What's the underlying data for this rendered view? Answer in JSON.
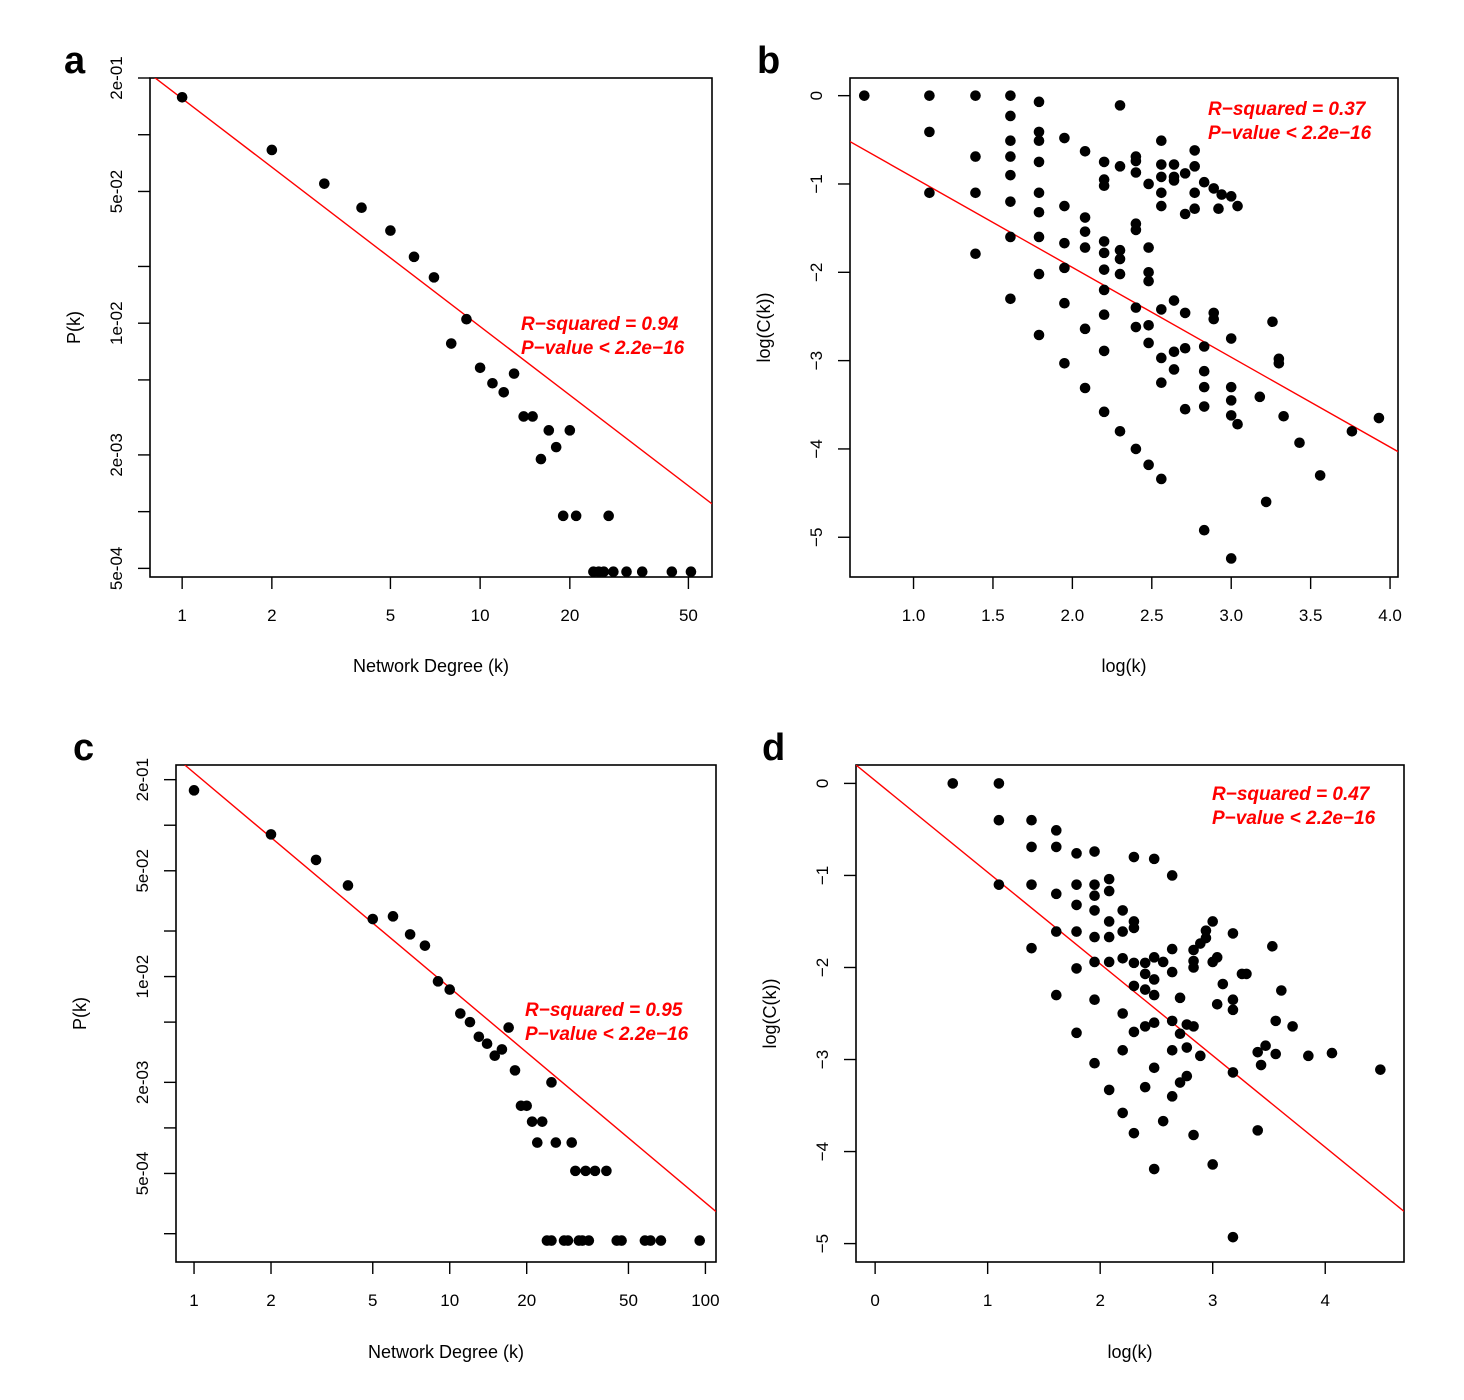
{
  "chart_data": [
    {
      "panel": "a",
      "type": "scatter",
      "xscale": "log",
      "yscale": "log",
      "xlabel": "Network Degree (k)",
      "ylabel": "P(k)",
      "xticks": [
        1,
        2,
        5,
        10,
        20,
        50
      ],
      "xtick_labels": [
        "1",
        "2",
        "5",
        "10",
        "20",
        "50"
      ],
      "yticks": [
        0.2,
        0.05,
        0.01,
        0.002,
        0.0005
      ],
      "ytick_labels": [
        "2e-01",
        "5e-02",
        "1e-02",
        "2e-03",
        "5e-04"
      ],
      "xlim": [
        0.78,
        60
      ],
      "ylim": [
        0.00045,
        0.2
      ],
      "grid": false,
      "fit_line": {
        "x": [
          0.78,
          60
        ],
        "y": [
          0.21,
          0.0011
        ],
        "color": "#ff0000"
      },
      "annotations": [
        "R−squared = 0.94",
        "P−value < 2.2e−16"
      ],
      "points": [
        [
          1,
          0.158
        ],
        [
          2,
          0.083
        ],
        [
          3,
          0.055
        ],
        [
          4,
          0.041
        ],
        [
          5,
          0.031
        ],
        [
          6,
          0.0225
        ],
        [
          7,
          0.0175
        ],
        [
          9,
          0.0105
        ],
        [
          8,
          0.0078
        ],
        [
          10,
          0.0058
        ],
        [
          11,
          0.0048
        ],
        [
          12,
          0.0043
        ],
        [
          13,
          0.0054
        ],
        [
          14,
          0.0032
        ],
        [
          15,
          0.0032
        ],
        [
          17,
          0.0027
        ],
        [
          18,
          0.0022
        ],
        [
          16,
          0.0019
        ],
        [
          20,
          0.0027
        ],
        [
          19,
          0.00095
        ],
        [
          21,
          0.00095
        ],
        [
          27,
          0.00095
        ],
        [
          24,
          0.00048
        ],
        [
          25,
          0.00048
        ],
        [
          26,
          0.00048
        ],
        [
          28,
          0.00048
        ],
        [
          31,
          0.00048
        ],
        [
          35,
          0.00048
        ],
        [
          44,
          0.00048
        ],
        [
          51,
          0.00048
        ]
      ]
    },
    {
      "panel": "b",
      "type": "scatter",
      "xscale": "linear",
      "yscale": "linear",
      "xlabel": "log(k)",
      "ylabel": "log(C(k))",
      "xticks": [
        1.0,
        1.5,
        2.0,
        2.5,
        3.0,
        3.5,
        4.0
      ],
      "xtick_labels": [
        "1.0",
        "1.5",
        "2.0",
        "2.5",
        "3.0",
        "3.5",
        "4.0"
      ],
      "yticks": [
        0,
        -1,
        -2,
        -3,
        -4,
        -5
      ],
      "ytick_labels": [
        "0",
        "−1",
        "−2",
        "−3",
        "−4",
        "−5"
      ],
      "xlim": [
        0.6,
        4.05
      ],
      "ylim": [
        -5.45,
        0.2
      ],
      "grid": false,
      "fit_line": {
        "x": [
          0.6,
          4.05
        ],
        "y": [
          -0.52,
          -4.03
        ],
        "color": "#ff0000"
      },
      "annotations": [
        "R−squared = 0.37",
        "P−value < 2.2e−16"
      ],
      "points": [
        [
          0.69,
          0
        ],
        [
          1.1,
          0
        ],
        [
          1.39,
          0
        ],
        [
          1.61,
          0
        ],
        [
          1.79,
          -0.07
        ],
        [
          2.3,
          -0.11
        ],
        [
          1.1,
          -0.41
        ],
        [
          1.61,
          -0.23
        ],
        [
          1.61,
          -0.51
        ],
        [
          1.79,
          -0.41
        ],
        [
          1.79,
          -0.51
        ],
        [
          1.95,
          -0.48
        ],
        [
          1.39,
          -0.69
        ],
        [
          1.61,
          -0.69
        ],
        [
          1.79,
          -0.75
        ],
        [
          2.08,
          -0.63
        ],
        [
          2.2,
          -0.75
        ],
        [
          2.3,
          -0.8
        ],
        [
          2.4,
          -0.69
        ],
        [
          2.4,
          -0.74
        ],
        [
          2.4,
          -0.87
        ],
        [
          2.48,
          -1.0
        ],
        [
          2.56,
          -0.51
        ],
        [
          2.56,
          -0.78
        ],
        [
          2.56,
          -0.92
        ],
        [
          2.64,
          -0.78
        ],
        [
          2.64,
          -0.92
        ],
        [
          2.64,
          -0.96
        ],
        [
          2.71,
          -0.88
        ],
        [
          2.77,
          -0.62
        ],
        [
          2.77,
          -0.8
        ],
        [
          2.83,
          -0.98
        ],
        [
          2.89,
          -1.05
        ],
        [
          2.94,
          -1.12
        ],
        [
          3.0,
          -1.14
        ],
        [
          3.04,
          -1.25
        ],
        [
          2.2,
          -0.95
        ],
        [
          2.2,
          -1.02
        ],
        [
          2.56,
          -1.1
        ],
        [
          2.56,
          -1.25
        ],
        [
          2.71,
          -1.34
        ],
        [
          2.77,
          -1.28
        ],
        [
          2.92,
          -1.28
        ],
        [
          2.77,
          -1.1
        ],
        [
          1.1,
          -1.1
        ],
        [
          1.39,
          -1.1
        ],
        [
          1.61,
          -0.9
        ],
        [
          1.61,
          -1.2
        ],
        [
          1.79,
          -1.1
        ],
        [
          1.79,
          -1.32
        ],
        [
          1.95,
          -1.25
        ],
        [
          2.08,
          -1.38
        ],
        [
          2.08,
          -1.54
        ],
        [
          2.2,
          -1.65
        ],
        [
          2.3,
          -1.75
        ],
        [
          2.4,
          -1.45
        ],
        [
          2.4,
          -1.52
        ],
        [
          2.48,
          -1.72
        ],
        [
          1.61,
          -1.6
        ],
        [
          1.79,
          -1.6
        ],
        [
          1.95,
          -1.67
        ],
        [
          2.08,
          -1.72
        ],
        [
          2.2,
          -1.78
        ],
        [
          2.3,
          -1.85
        ],
        [
          1.39,
          -1.79
        ],
        [
          1.79,
          -2.02
        ],
        [
          1.95,
          -1.95
        ],
        [
          2.2,
          -1.97
        ],
        [
          2.3,
          -2.02
        ],
        [
          2.48,
          -2.0
        ],
        [
          2.48,
          -2.1
        ],
        [
          2.2,
          -2.2
        ],
        [
          2.4,
          -2.4
        ],
        [
          2.56,
          -2.42
        ],
        [
          2.64,
          -2.32
        ],
        [
          2.2,
          -2.48
        ],
        [
          2.08,
          -2.64
        ],
        [
          2.4,
          -2.62
        ],
        [
          2.48,
          -2.6
        ],
        [
          2.71,
          -2.46
        ],
        [
          1.61,
          -2.3
        ],
        [
          1.95,
          -2.35
        ],
        [
          1.79,
          -2.71
        ],
        [
          2.48,
          -2.8
        ],
        [
          2.64,
          -2.9
        ],
        [
          2.71,
          -2.86
        ],
        [
          2.83,
          -2.84
        ],
        [
          2.56,
          -2.97
        ],
        [
          2.89,
          -2.46
        ],
        [
          2.89,
          -2.53
        ],
        [
          3.0,
          -2.75
        ],
        [
          2.2,
          -2.89
        ],
        [
          1.95,
          -3.03
        ],
        [
          2.64,
          -3.1
        ],
        [
          2.83,
          -3.12
        ],
        [
          2.56,
          -3.25
        ],
        [
          2.83,
          -3.3
        ],
        [
          3.0,
          -3.3
        ],
        [
          2.08,
          -3.31
        ],
        [
          3.0,
          -3.45
        ],
        [
          3.18,
          -3.41
        ],
        [
          2.83,
          -3.52
        ],
        [
          2.71,
          -3.55
        ],
        [
          3.0,
          -3.62
        ],
        [
          3.04,
          -3.72
        ],
        [
          3.33,
          -3.63
        ],
        [
          2.2,
          -3.58
        ],
        [
          2.3,
          -3.8
        ],
        [
          3.43,
          -3.93
        ],
        [
          3.76,
          -3.8
        ],
        [
          3.93,
          -3.65
        ],
        [
          2.4,
          -4.0
        ],
        [
          2.48,
          -4.18
        ],
        [
          2.56,
          -4.34
        ],
        [
          3.56,
          -4.3
        ],
        [
          3.22,
          -4.6
        ],
        [
          3.26,
          -2.56
        ],
        [
          3.3,
          -2.98
        ],
        [
          3.3,
          -3.03
        ],
        [
          2.83,
          -4.92
        ],
        [
          3.0,
          -5.24
        ]
      ]
    },
    {
      "panel": "c",
      "type": "scatter",
      "xscale": "log",
      "yscale": "log",
      "xlabel": "Network Degree (k)",
      "ylabel": "P(k)",
      "xticks": [
        1,
        2,
        5,
        10,
        20,
        50,
        100
      ],
      "xtick_labels": [
        "1",
        "2",
        "5",
        "10",
        "20",
        "50",
        "100"
      ],
      "yticks": [
        0.2,
        0.05,
        0.01,
        0.002,
        0.0005
      ],
      "ytick_labels": [
        "2e-01",
        "5e-02",
        "1e-02",
        "2e-03",
        "5e-04"
      ],
      "xlim": [
        0.85,
        110
      ],
      "ylim": [
        0.00013,
        0.25
      ],
      "grid": false,
      "fit_line": {
        "x": [
          0.92,
          110
        ],
        "y": [
          0.25,
          0.00028
        ],
        "color": "#ff0000"
      },
      "annotations": [
        "R−squared = 0.95",
        "P−value < 2.2e−16"
      ],
      "points": [
        [
          1,
          0.17
        ],
        [
          2,
          0.087
        ],
        [
          3,
          0.059
        ],
        [
          4,
          0.04
        ],
        [
          5,
          0.024
        ],
        [
          6,
          0.025
        ],
        [
          7,
          0.019
        ],
        [
          8,
          0.016
        ],
        [
          9,
          0.0093
        ],
        [
          10,
          0.0082
        ],
        [
          11,
          0.0057
        ],
        [
          12,
          0.005
        ],
        [
          13,
          0.004
        ],
        [
          14,
          0.0036
        ],
        [
          15,
          0.003
        ],
        [
          16,
          0.0033
        ],
        [
          17,
          0.0046
        ],
        [
          18,
          0.0024
        ],
        [
          19,
          0.0014
        ],
        [
          20,
          0.0014
        ],
        [
          21,
          0.0011
        ],
        [
          22,
          0.0008
        ],
        [
          23,
          0.0011
        ],
        [
          25,
          0.002
        ],
        [
          26,
          0.0008
        ],
        [
          30,
          0.0008
        ],
        [
          31,
          0.00052
        ],
        [
          34,
          0.00052
        ],
        [
          37,
          0.00052
        ],
        [
          41,
          0.00052
        ],
        [
          24,
          0.00018
        ],
        [
          25,
          0.00018
        ],
        [
          28,
          0.00018
        ],
        [
          29,
          0.00018
        ],
        [
          32,
          0.00018
        ],
        [
          33,
          0.00018
        ],
        [
          35,
          0.00018
        ],
        [
          45,
          0.00018
        ],
        [
          47,
          0.00018
        ],
        [
          58,
          0.00018
        ],
        [
          61,
          0.00018
        ],
        [
          67,
          0.00018
        ],
        [
          95,
          0.00018
        ]
      ]
    },
    {
      "panel": "d",
      "type": "scatter",
      "xscale": "linear",
      "yscale": "linear",
      "xlabel": "log(k)",
      "ylabel": "log(C(k))",
      "xticks": [
        0,
        1,
        2,
        3,
        4
      ],
      "xtick_labels": [
        "0",
        "1",
        "2",
        "3",
        "4"
      ],
      "yticks": [
        0,
        -1,
        -2,
        -3,
        -4,
        -5
      ],
      "ytick_labels": [
        "0",
        "−1",
        "−2",
        "−3",
        "−4",
        "−5"
      ],
      "xlim": [
        -0.17,
        4.7
      ],
      "ylim": [
        -5.2,
        0.2
      ],
      "grid": false,
      "fit_line": {
        "x": [
          -0.17,
          4.7
        ],
        "y": [
          0.2,
          -4.65
        ],
        "color": "#ff0000"
      },
      "annotations": [
        "R−squared = 0.47",
        "P−value < 2.2e−16"
      ],
      "points": [
        [
          0.69,
          0
        ],
        [
          1.1,
          0
        ],
        [
          1.1,
          -0.4
        ],
        [
          1.39,
          -0.4
        ],
        [
          1.61,
          -0.51
        ],
        [
          1.39,
          -0.69
        ],
        [
          1.61,
          -0.69
        ],
        [
          1.79,
          -0.76
        ],
        [
          1.95,
          -0.74
        ],
        [
          2.3,
          -0.8
        ],
        [
          2.48,
          -0.82
        ],
        [
          2.64,
          -1.0
        ],
        [
          1.1,
          -1.1
        ],
        [
          1.39,
          -1.1
        ],
        [
          1.61,
          -1.2
        ],
        [
          1.79,
          -1.1
        ],
        [
          1.95,
          -1.1
        ],
        [
          2.08,
          -1.04
        ],
        [
          1.95,
          -1.22
        ],
        [
          2.08,
          -1.17
        ],
        [
          1.79,
          -1.32
        ],
        [
          1.95,
          -1.38
        ],
        [
          2.2,
          -1.38
        ],
        [
          2.3,
          -1.5
        ],
        [
          2.08,
          -1.5
        ],
        [
          1.61,
          -1.61
        ],
        [
          1.79,
          -1.61
        ],
        [
          1.95,
          -1.67
        ],
        [
          2.08,
          -1.67
        ],
        [
          2.2,
          -1.61
        ],
        [
          2.3,
          -1.57
        ],
        [
          2.08,
          -1.94
        ],
        [
          1.95,
          -1.94
        ],
        [
          1.79,
          -2.01
        ],
        [
          1.39,
          -1.79
        ],
        [
          1.61,
          -2.3
        ],
        [
          1.79,
          -2.71
        ],
        [
          1.95,
          -2.35
        ],
        [
          2.2,
          -1.9
        ],
        [
          2.3,
          -1.95
        ],
        [
          2.4,
          -1.95
        ],
        [
          2.48,
          -1.89
        ],
        [
          2.56,
          -1.94
        ],
        [
          2.64,
          -1.8
        ],
        [
          2.64,
          -2.05
        ],
        [
          2.4,
          -2.07
        ],
        [
          2.48,
          -2.13
        ],
        [
          2.71,
          -2.33
        ],
        [
          2.83,
          -2.0
        ],
        [
          2.83,
          -1.81
        ],
        [
          2.89,
          -1.74
        ],
        [
          2.94,
          -1.6
        ],
        [
          3.0,
          -1.5
        ],
        [
          3.18,
          -1.63
        ],
        [
          2.94,
          -1.68
        ],
        [
          3.0,
          -1.94
        ],
        [
          3.04,
          -1.89
        ],
        [
          2.83,
          -1.93
        ],
        [
          3.09,
          -2.18
        ],
        [
          3.18,
          -2.35
        ],
        [
          3.18,
          -2.46
        ],
        [
          3.04,
          -2.4
        ],
        [
          3.26,
          -2.07
        ],
        [
          3.3,
          -2.07
        ],
        [
          3.53,
          -1.77
        ],
        [
          3.61,
          -2.25
        ],
        [
          3.71,
          -2.64
        ],
        [
          3.56,
          -2.58
        ],
        [
          3.4,
          -2.92
        ],
        [
          3.47,
          -2.85
        ],
        [
          3.56,
          -2.94
        ],
        [
          3.43,
          -3.06
        ],
        [
          3.85,
          -2.96
        ],
        [
          4.06,
          -2.93
        ],
        [
          4.49,
          -3.11
        ],
        [
          3.18,
          -3.14
        ],
        [
          3.4,
          -3.77
        ],
        [
          2.3,
          -2.2
        ],
        [
          2.4,
          -2.24
        ],
        [
          2.48,
          -2.3
        ],
        [
          2.2,
          -2.5
        ],
        [
          2.3,
          -2.7
        ],
        [
          2.4,
          -2.64
        ],
        [
          2.48,
          -2.6
        ],
        [
          2.64,
          -2.58
        ],
        [
          2.71,
          -2.72
        ],
        [
          2.77,
          -2.62
        ],
        [
          2.83,
          -2.64
        ],
        [
          2.89,
          -2.96
        ],
        [
          2.64,
          -2.9
        ],
        [
          2.77,
          -2.87
        ],
        [
          2.48,
          -3.09
        ],
        [
          2.71,
          -3.25
        ],
        [
          2.77,
          -3.18
        ],
        [
          2.2,
          -2.9
        ],
        [
          1.95,
          -3.04
        ],
        [
          2.08,
          -3.33
        ],
        [
          2.4,
          -3.3
        ],
        [
          2.64,
          -3.4
        ],
        [
          2.2,
          -3.58
        ],
        [
          2.56,
          -3.67
        ],
        [
          2.3,
          -3.8
        ],
        [
          2.83,
          -3.82
        ],
        [
          3.0,
          -4.14
        ],
        [
          2.48,
          -4.19
        ],
        [
          3.18,
          -4.93
        ]
      ]
    }
  ],
  "panel_letters": [
    "a",
    "b",
    "c",
    "d"
  ]
}
